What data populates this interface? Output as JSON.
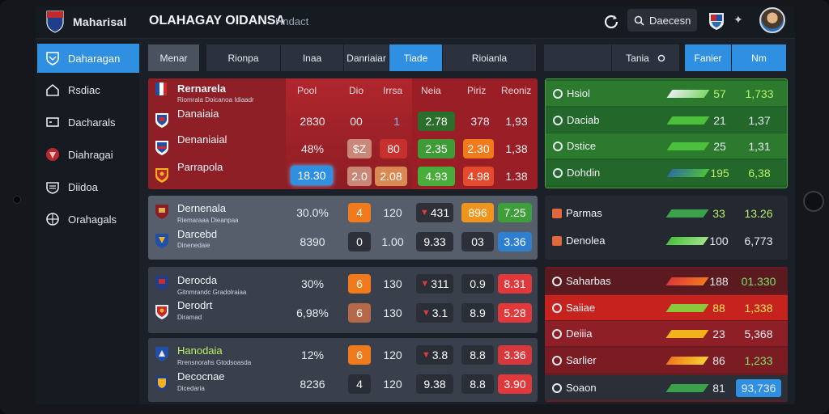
{
  "app": {
    "title": "Maharisal"
  },
  "topbar": {
    "nav_main": "OLAHAGAY  OIDANSA",
    "nav_sub": "Hndact",
    "search_label": "Daecesn",
    "refresh_icon": "refresh-icon",
    "flag_icon": "flag-shield-icon",
    "pin_icon": "pin-icon",
    "avatar_icon": "user-avatar"
  },
  "sidebar": {
    "items": [
      {
        "label": "Daharagan",
        "icon": "shield-icon",
        "active": true
      },
      {
        "label": "Rsdiac",
        "icon": "home-icon"
      },
      {
        "label": "Dacharals",
        "icon": "monitor-icon"
      },
      {
        "label": "Diahragai",
        "icon": "team-badge-icon"
      },
      {
        "label": "Diidoa",
        "icon": "layers-icon"
      },
      {
        "label": "Orahagals",
        "icon": "globe-icon"
      }
    ]
  },
  "tabs": [
    {
      "label": "Menar"
    },
    {
      "label": "Rionpa"
    },
    {
      "label": "Inaa"
    },
    {
      "label": "Danriaiar"
    },
    {
      "label": "Tiade",
      "active": true
    },
    {
      "label": "Rioianla"
    },
    {
      "label": ""
    },
    {
      "label": "Tania"
    },
    {
      "label": "Fanier",
      "active": true
    },
    {
      "label": "Nm",
      "active": true
    }
  ],
  "tab_select_icon": "circle-select-icon",
  "matches": {
    "headers": [
      "Pool",
      "Dio",
      "Irrsa",
      "Neia",
      "Piriz",
      "Reoniz"
    ],
    "group1": {
      "title": "Rernarela",
      "subtitle": "Riomrala Doicanoa Idiaadr",
      "rows": [
        {
          "team": "Danaiaia",
          "v1": "2830",
          "v2": "00",
          "v3": "1",
          "v4": "2.78",
          "v5": "378",
          "v6": "1,93"
        },
        {
          "team": "Denaniaial",
          "v1": "48%",
          "v2": "$Z",
          "v3": "80",
          "v4": "2.35",
          "v5": "2.30",
          "v6": "1,38"
        },
        {
          "team": "Parrapola",
          "v1": "18.30",
          "v2": "2.0",
          "v3": "2.08",
          "v4": "4.93",
          "v5": "4.98",
          "v6": "1.38"
        }
      ]
    },
    "group2": {
      "rows": [
        {
          "team": "Dernenala",
          "sub": "Riemaraaa Dieanpaa",
          "v1": "30.0%",
          "v2": "4",
          "v3": "120",
          "v4": "431",
          "v5": "896",
          "v6": "7.25"
        },
        {
          "team": "Darcebd",
          "sub": "Dinenedaie",
          "v1": "8390",
          "v2": "0",
          "v3": "1.00",
          "v4": "9.33",
          "v5": "03",
          "v6": "3.36"
        }
      ]
    },
    "group3": {
      "rows": [
        {
          "team": "Derocda",
          "sub": "Gitnmrandc Gradolraiaa",
          "v1": "30%",
          "v2": "6",
          "v3": "130",
          "v4": "311",
          "v5": "0.9",
          "v6": "8.31"
        },
        {
          "team": "Derodrt",
          "sub": "Diramad",
          "v1": "6,98%",
          "v2": "6",
          "v3": "130",
          "v4": "3.1",
          "v5": "8.9",
          "v6": "5.28"
        }
      ]
    },
    "group4": {
      "rows": [
        {
          "team": "Hanodaia",
          "sub": "Rrensnorahs Gtodsoasda",
          "v1": "12%",
          "v2": "6",
          "v3": "120",
          "v4": "3.8",
          "v5": "8.8",
          "v6": "3.36"
        },
        {
          "team": "Decocnae",
          "sub": "Dicedaria",
          "v1": "8236",
          "v2": "4",
          "v3": "120",
          "v4": "9.38",
          "v5": "8.8",
          "v6": "3.90"
        }
      ]
    }
  },
  "standings": {
    "green": [
      {
        "name": "Hsiol",
        "v1": "57",
        "v2": "1,733"
      },
      {
        "name": "Daciab",
        "v1": "21",
        "v2": "1,37"
      },
      {
        "name": "Dstice",
        "v1": "25",
        "v2": "1,31"
      },
      {
        "name": "Dohdin",
        "v1": "195",
        "v2": "6,38"
      }
    ],
    "dark": [
      {
        "name": "Parmas",
        "v1": "33",
        "v2": "13.26"
      },
      {
        "name": "Denolea",
        "v1": "100",
        "v2": "6,773"
      }
    ],
    "red": [
      {
        "name": "Saharbas",
        "v1": "188",
        "v2": "01.330"
      },
      {
        "name": "Saiiae",
        "v1": "88",
        "v2": "1,338"
      },
      {
        "name": "Deiiia",
        "v1": "23",
        "v2": "5,368"
      },
      {
        "name": "Sarlier",
        "v1": "86",
        "v2": "1,233"
      },
      {
        "name": "Soaon",
        "v1": "81",
        "v2": "93,736"
      }
    ]
  },
  "colors": {
    "accent": "#2f8fe0",
    "red_panel": "#a9252c",
    "green_panel": "#2f7d2f",
    "orange": "#f07a1c",
    "pill_green": "#3ea23a",
    "pill_red": "#e0383b"
  }
}
